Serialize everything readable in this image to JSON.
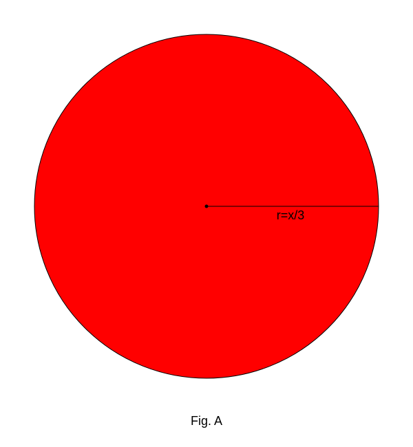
{
  "figure": {
    "circle_fill": "#ff0000",
    "stroke_color": "#000000",
    "radius_label": "r=x/3",
    "caption": "Fig. A"
  }
}
